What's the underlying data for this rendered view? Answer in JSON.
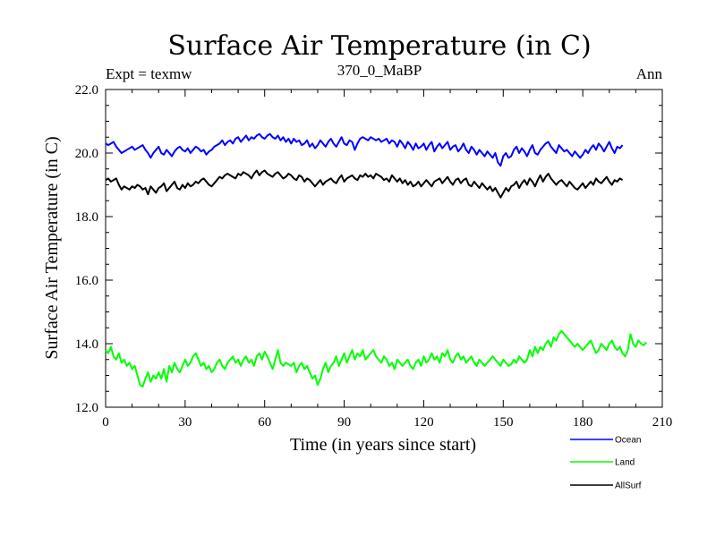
{
  "chart_data": {
    "type": "line",
    "title": "Surface Air Temperature (in C)",
    "subtitle_left": "Expt = texmw",
    "subtitle_center": "370_0_MaBP",
    "subtitle_right": "Ann",
    "xlabel": "Time (in years since start)",
    "ylabel": "Surface Air Temperature (in C)",
    "xlim": [
      0,
      210
    ],
    "ylim": [
      12,
      22
    ],
    "xticks": [
      0,
      30,
      60,
      90,
      120,
      150,
      180,
      210
    ],
    "xtick_labels": [
      "0",
      "30",
      "60",
      "90",
      "120",
      "150",
      "180",
      "210"
    ],
    "yticks": [
      12,
      14,
      16,
      18,
      20,
      22
    ],
    "ytick_labels": [
      "12.0",
      "14.0",
      "16.0",
      "18.0",
      "20.0",
      "22.0"
    ],
    "legend_position": "bottom-right, outside plot",
    "series": [
      {
        "name": "Ocean",
        "color": "#0000ff",
        "x_step": 1,
        "values": [
          20.3,
          20.25,
          20.3,
          20.35,
          20.2,
          20.1,
          20.0,
          20.05,
          20.1,
          20.15,
          20.2,
          20.1,
          20.15,
          20.2,
          20.25,
          20.1,
          20.0,
          19.85,
          20.0,
          20.1,
          20.2,
          20.0,
          19.95,
          20.1,
          20.0,
          19.9,
          20.05,
          20.15,
          20.2,
          20.1,
          20.05,
          20.15,
          20.0,
          20.1,
          20.2,
          20.15,
          20.05,
          20.1,
          19.95,
          20.05,
          20.1,
          20.2,
          20.25,
          20.3,
          20.4,
          20.25,
          20.35,
          20.4,
          20.3,
          20.45,
          20.5,
          20.35,
          20.45,
          20.55,
          20.4,
          20.5,
          20.45,
          20.55,
          20.6,
          20.5,
          20.45,
          20.55,
          20.6,
          20.5,
          20.45,
          20.55,
          20.4,
          20.5,
          20.35,
          20.45,
          20.3,
          20.45,
          20.35,
          20.4,
          20.25,
          20.3,
          20.4,
          20.2,
          20.3,
          20.15,
          20.25,
          20.4,
          20.3,
          20.2,
          20.35,
          20.45,
          20.3,
          20.2,
          20.35,
          20.5,
          20.3,
          20.25,
          20.4,
          20.35,
          20.1,
          20.3,
          20.45,
          20.5,
          20.45,
          20.4,
          20.5,
          20.45,
          20.4,
          20.45,
          20.35,
          20.4,
          20.45,
          20.3,
          20.4,
          20.35,
          20.2,
          20.4,
          20.3,
          20.15,
          20.35,
          20.25,
          20.1,
          20.3,
          20.15,
          20.2,
          20.3,
          20.1,
          20.25,
          20.35,
          20.05,
          20.2,
          20.3,
          20.15,
          20.25,
          20.35,
          20.1,
          20.2,
          20.25,
          20.05,
          20.15,
          20.3,
          20.1,
          20.0,
          20.2,
          20.1,
          19.95,
          20.1,
          20.0,
          19.9,
          20.05,
          19.95,
          19.85,
          20.0,
          19.7,
          19.6,
          19.9,
          20.0,
          19.85,
          19.9,
          20.1,
          20.2,
          20.0,
          20.15,
          20.05,
          19.9,
          20.1,
          20.25,
          20.0,
          19.95,
          20.1,
          20.2,
          20.3,
          20.35,
          20.2,
          20.1,
          20.0,
          20.25,
          20.15,
          20.05,
          20.1,
          20.0,
          19.9,
          20.05,
          19.95,
          19.85,
          19.95,
          20.1,
          20.0,
          20.15,
          20.25,
          20.1,
          20.3,
          20.2,
          20.05,
          20.2,
          20.35,
          20.15,
          20.0,
          20.2,
          20.15,
          20.25
        ]
      },
      {
        "name": "Land",
        "color": "#00ff00",
        "x_step": 1,
        "values": [
          13.8,
          13.7,
          13.9,
          13.6,
          13.5,
          13.7,
          13.4,
          13.5,
          13.3,
          13.4,
          13.2,
          13.3,
          13.0,
          12.7,
          12.65,
          12.9,
          13.1,
          12.8,
          13.0,
          12.9,
          13.1,
          12.9,
          13.2,
          12.8,
          13.3,
          13.1,
          13.4,
          13.2,
          13.1,
          13.3,
          13.5,
          13.3,
          13.4,
          13.6,
          13.7,
          13.5,
          13.3,
          13.4,
          13.2,
          13.3,
          13.1,
          13.2,
          13.4,
          13.5,
          13.3,
          13.2,
          13.4,
          13.5,
          13.6,
          13.4,
          13.5,
          13.3,
          13.5,
          13.6,
          13.4,
          13.5,
          13.3,
          13.6,
          13.7,
          13.5,
          13.75,
          13.6,
          13.4,
          13.2,
          13.5,
          13.8,
          13.4,
          13.3,
          13.4,
          13.35,
          13.3,
          13.4,
          13.1,
          13.3,
          13.4,
          13.2,
          13.3,
          13.1,
          12.9,
          13.0,
          12.7,
          12.9,
          13.2,
          13.4,
          13.1,
          13.3,
          13.4,
          13.6,
          13.3,
          13.5,
          13.7,
          13.4,
          13.6,
          13.8,
          13.5,
          13.7,
          13.6,
          13.8,
          13.5,
          13.6,
          13.7,
          13.8,
          13.6,
          13.5,
          13.4,
          13.6,
          13.5,
          13.3,
          13.4,
          13.2,
          13.5,
          13.4,
          13.3,
          13.4,
          13.5,
          13.3,
          13.2,
          13.4,
          13.5,
          13.3,
          13.6,
          13.4,
          13.5,
          13.7,
          13.5,
          13.6,
          13.4,
          13.7,
          13.6,
          13.8,
          13.5,
          13.4,
          13.6,
          13.7,
          13.5,
          13.6,
          13.4,
          13.5,
          13.6,
          13.4,
          13.3,
          13.5,
          13.4,
          13.3,
          13.4,
          13.5,
          13.6,
          13.5,
          13.4,
          13.3,
          13.5,
          13.4,
          13.3,
          13.35,
          13.5,
          13.4,
          13.6,
          13.5,
          13.4,
          13.5,
          13.8,
          13.6,
          13.9,
          13.7,
          13.9,
          13.8,
          14.0,
          14.1,
          13.9,
          14.2,
          14.1,
          14.3,
          14.4,
          14.3,
          14.2,
          14.1,
          14.0,
          13.9,
          14.0,
          13.9,
          13.8,
          13.9,
          14.0,
          14.1,
          13.9,
          13.7,
          13.8,
          14.0,
          13.9,
          13.8,
          14.0,
          14.1,
          13.9,
          13.8,
          13.9,
          13.7,
          13.6,
          13.8,
          14.3,
          14.0,
          13.9,
          14.1,
          14.0,
          13.95,
          14.05
        ]
      },
      {
        "name": "AllSurf",
        "color": "#000000",
        "x_step": 1,
        "values": [
          19.15,
          19.2,
          19.1,
          19.15,
          19.2,
          19.0,
          18.85,
          18.95,
          18.9,
          18.85,
          18.95,
          18.9,
          19.0,
          18.95,
          18.85,
          18.9,
          18.7,
          18.95,
          18.85,
          18.75,
          18.9,
          18.95,
          19.05,
          18.8,
          18.9,
          19.0,
          19.1,
          18.9,
          18.85,
          19.0,
          18.9,
          19.05,
          18.95,
          19.0,
          19.1,
          19.05,
          19.15,
          19.2,
          19.1,
          19.0,
          18.95,
          19.05,
          19.15,
          19.25,
          19.2,
          19.3,
          19.35,
          19.3,
          19.25,
          19.2,
          19.35,
          19.3,
          19.4,
          19.35,
          19.3,
          19.2,
          19.35,
          19.45,
          19.3,
          19.4,
          19.45,
          19.35,
          19.3,
          19.25,
          19.35,
          19.4,
          19.3,
          19.2,
          19.25,
          19.35,
          19.3,
          19.2,
          19.15,
          19.3,
          19.25,
          19.1,
          19.2,
          19.15,
          19.05,
          18.95,
          19.05,
          19.15,
          19.0,
          19.1,
          19.15,
          19.2,
          19.1,
          19.05,
          19.2,
          19.3,
          19.1,
          19.2,
          19.25,
          19.3,
          19.2,
          19.15,
          19.3,
          19.25,
          19.35,
          19.25,
          19.3,
          19.2,
          19.35,
          19.3,
          19.25,
          19.15,
          19.2,
          19.1,
          19.3,
          19.2,
          19.1,
          19.2,
          19.05,
          19.15,
          19.0,
          19.1,
          18.95,
          19.0,
          19.1,
          18.95,
          19.05,
          19.15,
          19.05,
          18.95,
          19.1,
          19.15,
          19.2,
          19.05,
          19.15,
          19.25,
          19.1,
          19.0,
          19.15,
          19.2,
          19.05,
          19.15,
          19.2,
          19.0,
          18.95,
          19.1,
          19.0,
          18.9,
          19.05,
          18.95,
          18.85,
          18.95,
          18.8,
          18.9,
          18.75,
          18.6,
          18.75,
          18.9,
          18.8,
          18.95,
          19.0,
          19.1,
          18.9,
          19.05,
          19.15,
          19.0,
          19.2,
          19.1,
          18.95,
          19.15,
          19.3,
          19.1,
          19.25,
          19.35,
          19.2,
          19.1,
          19.0,
          19.1,
          19.15,
          19.05,
          18.95,
          19.1,
          19.0,
          18.9,
          18.85,
          18.95,
          19.05,
          18.9,
          19.0,
          19.1,
          19.0,
          19.2,
          19.1,
          19.05,
          19.15,
          19.25,
          19.1,
          19.0,
          19.15,
          19.1,
          19.2,
          19.15
        ]
      }
    ]
  }
}
